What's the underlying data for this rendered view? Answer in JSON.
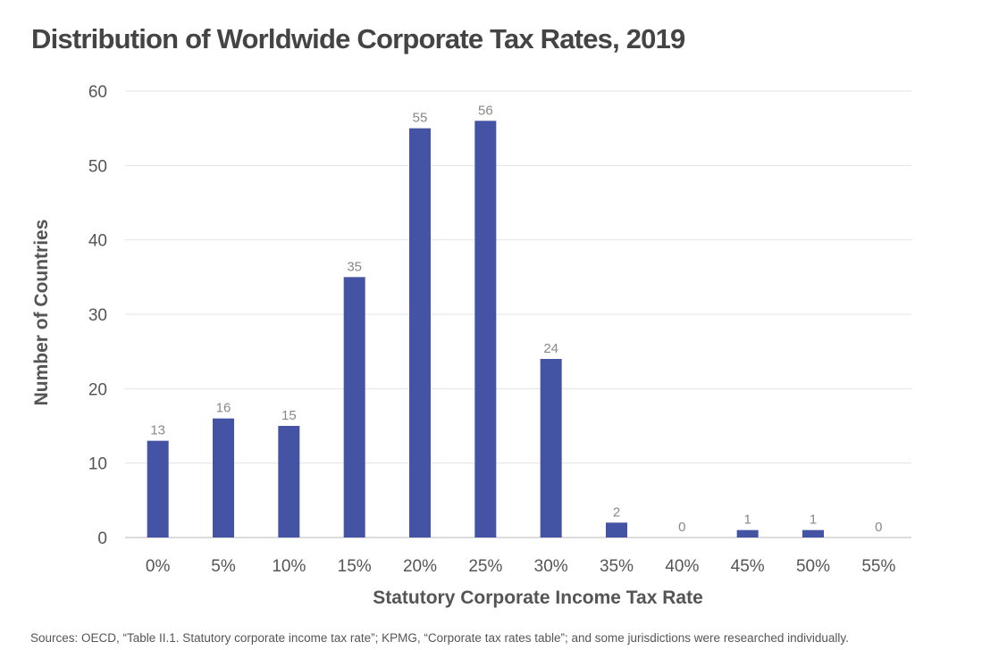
{
  "chart_data": {
    "type": "bar",
    "title": "Distribution of Worldwide Corporate Tax Rates, 2019",
    "xlabel": "Statutory Corporate Income Tax Rate",
    "ylabel": "Number of Countries",
    "categories": [
      "0%",
      "5%",
      "10%",
      "15%",
      "20%",
      "25%",
      "30%",
      "35%",
      "40%",
      "45%",
      "50%",
      "55%"
    ],
    "values": [
      13,
      16,
      15,
      35,
      55,
      56,
      24,
      2,
      0,
      1,
      1,
      0
    ],
    "ylim": [
      0,
      60
    ],
    "yticks": [
      0,
      10,
      20,
      30,
      40,
      50,
      60
    ],
    "grid": true,
    "data_labels": true,
    "bar_color": "#4453a4"
  },
  "source": "Sources: OECD, “Table II.1. Statutory corporate income tax rate”; KPMG, “Corporate tax rates table”; and some jurisdictions were researched individually."
}
